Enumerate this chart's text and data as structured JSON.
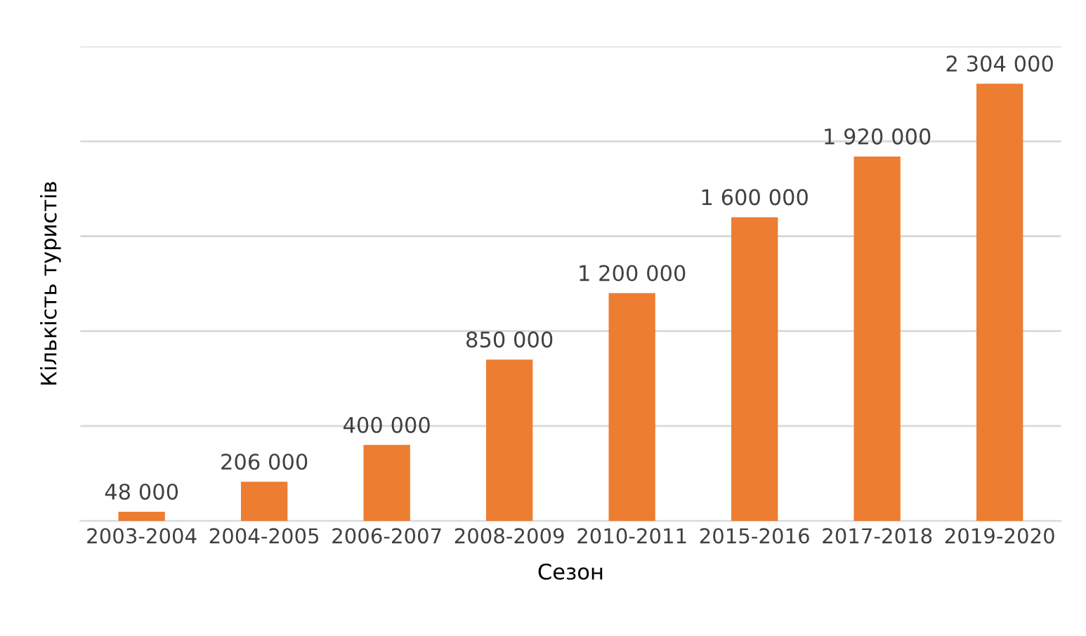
{
  "chart_data": {
    "type": "bar",
    "xlabel": "Сезон",
    "ylabel": "Кількість туристів",
    "categories": [
      "2003-2004",
      "2004-2005",
      "2006-2007",
      "2008-2009",
      "2010-2011",
      "2015-2016",
      "2017-2018",
      "2019-2020"
    ],
    "values": [
      48000,
      206000,
      400000,
      850000,
      1200000,
      1600000,
      1920000,
      2304000
    ],
    "value_labels": [
      "48 000",
      "206 000",
      "400 000",
      "850 000",
      "1 200 000",
      "1 600 000",
      "1 920 000",
      "2 304 000"
    ],
    "color": "#ed7d31",
    "ylim": [
      0,
      2500000
    ],
    "yticks": [
      {
        "value": 0,
        "label": null
      },
      {
        "value": 500000,
        "label": null
      },
      {
        "value": 1000000,
        "label": null
      },
      {
        "value": 1500000,
        "label": null
      },
      {
        "value": 2000000,
        "label": null
      },
      {
        "value": 2500000,
        "label": null
      }
    ],
    "grid": "y",
    "tick_labels": "x"
  }
}
